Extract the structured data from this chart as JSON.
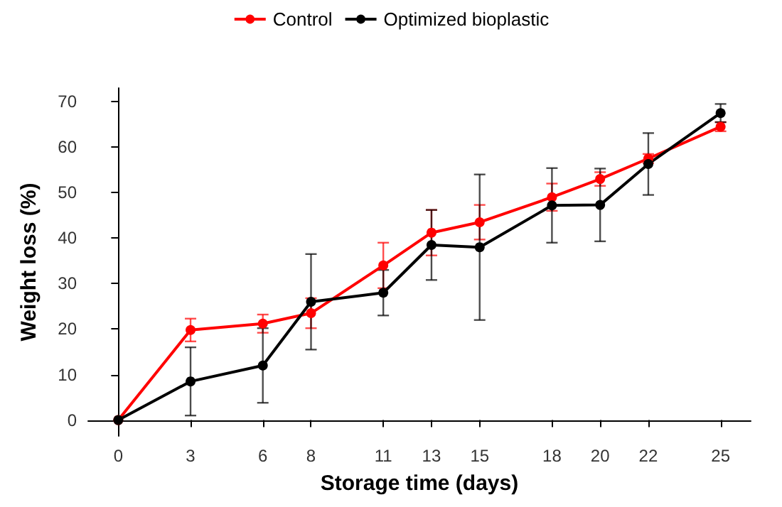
{
  "chart_data": {
    "type": "line",
    "xlabel": "Storage time (days)",
    "ylabel": "Weight loss (%)",
    "x": [
      0,
      3,
      6,
      8,
      11,
      13,
      15,
      18,
      20,
      22,
      25
    ],
    "xlim": [
      -1.25,
      26.25
    ],
    "xticks": [
      0,
      3,
      6,
      8,
      11,
      13,
      15,
      18,
      20,
      22,
      25
    ],
    "ylim": [
      -3.5,
      73
    ],
    "yticks": [
      0,
      10,
      20,
      30,
      40,
      50,
      60,
      70
    ],
    "series": [
      {
        "name": "Control",
        "color": "#ff0000",
        "values": [
          0,
          19.8,
          21.2,
          23.5,
          34,
          41.2,
          43.5,
          49,
          53,
          57.5,
          64.5
        ],
        "errors": [
          null,
          2.5,
          2,
          3.3,
          5,
          5,
          3.8,
          3,
          1.5,
          1,
          1
        ]
      },
      {
        "name": "Optimized bioplastic",
        "color": "#000000",
        "values": [
          0,
          8.5,
          12,
          26,
          28,
          38.5,
          38,
          47.2,
          47.3,
          56.3,
          67.5
        ],
        "errors": [
          null,
          7.5,
          8.2,
          10.5,
          5,
          7.7,
          16,
          8.2,
          8,
          6.8,
          2
        ]
      }
    ],
    "grid": false,
    "legend": "top",
    "marker": "circle",
    "line_style": "solid"
  }
}
